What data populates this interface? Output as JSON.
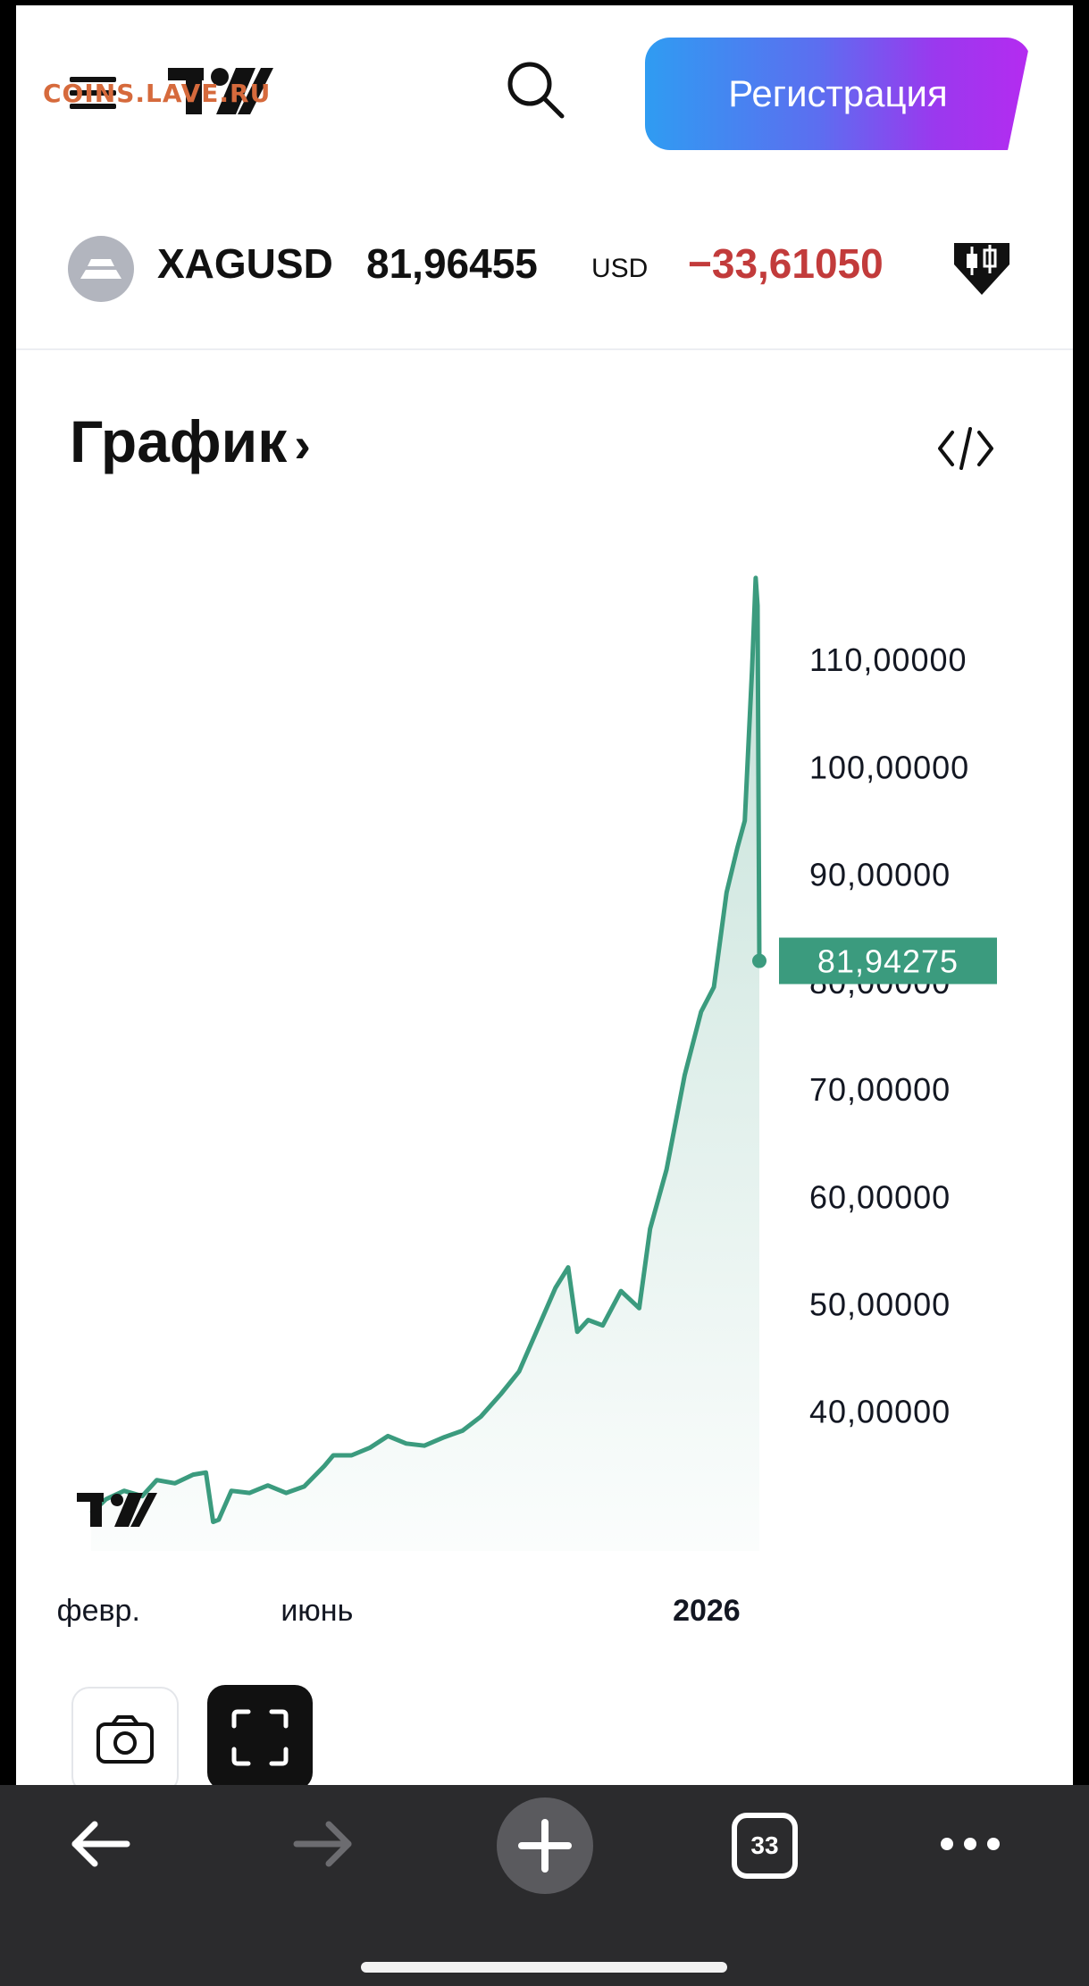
{
  "watermark": "COINS.LAVE.RU",
  "header": {
    "register_label": "Регистрация",
    "logo_icon": "tradingview-logo",
    "search_icon": "search-icon",
    "menu_icon": "hamburger-menu-icon"
  },
  "symbol": {
    "ticker": "XAGUSD",
    "price": "81,96455",
    "currency": "USD",
    "change": "−33,61050",
    "icon": "silver-bar-icon",
    "badge_icon": "candlestick-badge-icon",
    "change_color": "#c23b3b"
  },
  "section": {
    "title": "График",
    "chevron": "›",
    "embed_icon": "code-embed-icon"
  },
  "chart_data": {
    "type": "area",
    "line_color": "#3b9b7e",
    "y_ticks": [
      "110,00000",
      "100,00000",
      "90,00000",
      "80,00000",
      "70,00000",
      "60,00000",
      "50,00000",
      "40,00000"
    ],
    "y_tick_values": [
      110,
      100,
      90,
      80,
      70,
      60,
      50,
      40
    ],
    "x_ticks": [
      "февр.",
      "июнь",
      "2026"
    ],
    "last_value_label": "81,94275",
    "last_value": 81.94275,
    "ylim": [
      27,
      121
    ],
    "x": [
      "2025-01-28",
      "2025-02-05",
      "2025-02-15",
      "2025-02-25",
      "2025-03-05",
      "2025-03-15",
      "2025-03-25",
      "2025-04-01",
      "2025-04-05",
      "2025-04-08",
      "2025-04-15",
      "2025-04-25",
      "2025-05-05",
      "2025-05-15",
      "2025-05-25",
      "2025-06-05",
      "2025-06-10",
      "2025-06-20",
      "2025-06-30",
      "2025-07-10",
      "2025-07-20",
      "2025-07-30",
      "2025-08-10",
      "2025-08-20",
      "2025-08-30",
      "2025-09-10",
      "2025-09-20",
      "2025-09-30",
      "2025-10-10",
      "2025-10-17",
      "2025-10-22",
      "2025-10-28",
      "2025-11-05",
      "2025-11-15",
      "2025-11-25",
      "2025-12-01",
      "2025-12-10",
      "2025-12-20",
      "2025-12-29",
      "2026-01-05",
      "2026-01-12",
      "2026-01-18",
      "2026-01-22",
      "2026-01-26",
      "2026-01-28",
      "2026-01-29",
      "2026-01-30"
    ],
    "values": [
      30.5,
      31.8,
      32.6,
      32.1,
      33.6,
      33.3,
      34.1,
      34.3,
      29.7,
      29.9,
      32.6,
      32.4,
      33.1,
      32.4,
      33.0,
      34.9,
      35.9,
      35.9,
      36.6,
      37.7,
      37.0,
      36.8,
      37.6,
      38.2,
      39.5,
      41.6,
      43.7,
      47.6,
      51.5,
      53.4,
      47.4,
      48.5,
      48.0,
      51.2,
      49.6,
      57.0,
      62.5,
      71.3,
      77.2,
      79.5,
      88.3,
      92.5,
      95.0,
      109.0,
      117.6,
      115.0,
      81.94
    ]
  },
  "chart_logo_icon": "tradingview-logo",
  "chart_tools": {
    "camera_icon": "camera-icon",
    "fullscreen_icon": "fullscreen-icon"
  },
  "browser": {
    "back_icon": "back-arrow-icon",
    "forward_icon": "forward-arrow-icon",
    "new_tab_icon": "plus-icon",
    "tabs_count": "33",
    "more_icon": "more-dots-icon"
  }
}
